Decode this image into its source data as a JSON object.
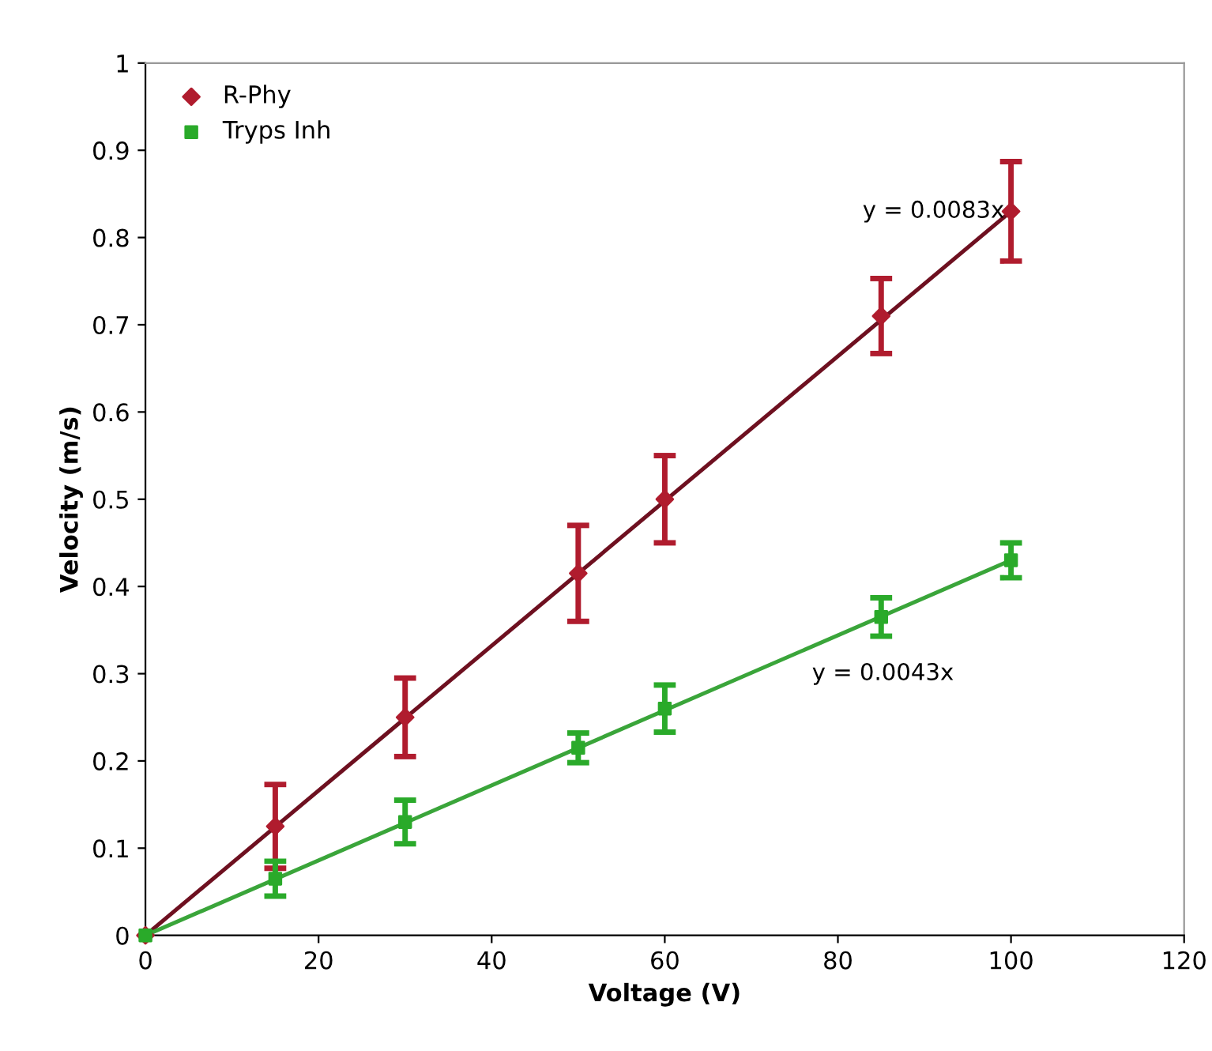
{
  "chart_data": {
    "type": "scatter",
    "xlabel": "Voltage (V)",
    "ylabel": "Velocity (m/s)",
    "xlim": [
      0,
      120
    ],
    "xticks": [
      0,
      20,
      40,
      60,
      80,
      100,
      120
    ],
    "ylim": [
      0,
      1
    ],
    "yticks": [
      0,
      0.1,
      0.2,
      0.3,
      0.4,
      0.5,
      0.6,
      0.7,
      0.8,
      0.9,
      1
    ],
    "grid": false,
    "legend": "top left",
    "series": [
      {
        "name": "R-Phy",
        "marker": "diamond",
        "color": "#b01c2e",
        "x": [
          0,
          15,
          30,
          50,
          60,
          85,
          100
        ],
        "values": [
          0,
          0.125,
          0.25,
          0.415,
          0.5,
          0.71,
          0.83
        ],
        "errors": [
          null,
          0.048,
          0.045,
          0.055,
          0.05,
          0.043,
          0.057
        ]
      },
      {
        "name": "Tryps Inh",
        "marker": "square",
        "color": "#2aaa2a",
        "x": [
          0,
          15,
          30,
          50,
          60,
          85,
          100
        ],
        "values": [
          0,
          0.065,
          0.13,
          0.215,
          0.26,
          0.365,
          0.43
        ],
        "errors": [
          null,
          0.02,
          0.025,
          0.017,
          0.027,
          0.022,
          0.02
        ]
      },
      {
        "type": "line",
        "color": "#6e1020",
        "x": [
          0,
          100
        ],
        "values": [
          0,
          0.83
        ]
      },
      {
        "type": "line",
        "color": "#3aa53a",
        "x": [
          0,
          100
        ],
        "values": [
          0,
          0.43
        ]
      }
    ],
    "annotations": [
      {
        "text": "y = 0.0083x",
        "x": 100,
        "y": 0.83
      },
      "y = 0.0043x"
    ]
  }
}
